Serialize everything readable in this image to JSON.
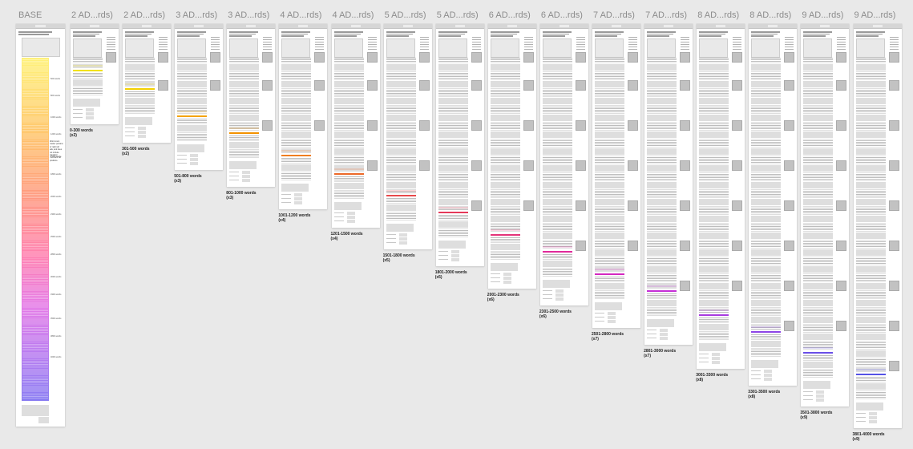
{
  "colors": {
    "background": "#e9e9e9",
    "artboard": "#ffffff",
    "side_ad": "#c2c2c2",
    "base_gradient": [
      "#fff27a",
      "#ffc56a",
      "#ff9a7e",
      "#ff7fb0",
      "#e57ae6",
      "#b87af0",
      "#8a7df2"
    ]
  },
  "base": {
    "title": "BASE",
    "note": "Word count marker pertains to 'right rail' ads, and does not include standard 'incontent' ad positions.",
    "markers": [
      "500 words",
      "800 words",
      "1000 words",
      "1200 words",
      "1500 words",
      "1800 words",
      "2000 words",
      "2300 words",
      "2500 words",
      "2800 words",
      "3000 words",
      "3300 words",
      "3500 words",
      "3800 words",
      "4000 words"
    ]
  },
  "columns": [
    {
      "title": "2 AD...rds)",
      "range": "0-300 words",
      "ads": "(x2)",
      "ad_color": "#f2e200"
    },
    {
      "title": "2 AD...rds)",
      "range": "301-500 words",
      "ads": "(x2)",
      "ad_color": "#f3d000"
    },
    {
      "title": "3 AD...rds)",
      "range": "501-800 words",
      "ads": "(x3)",
      "ad_color": "#f5a300"
    },
    {
      "title": "3 AD...rds)",
      "range": "801-1000 words",
      "ads": "(x3)",
      "ad_color": "#f39200"
    },
    {
      "title": "4 AD...rds)",
      "range": "1001-1200 words",
      "ads": "(x4)",
      "ad_color": "#f07d1f"
    },
    {
      "title": "4 AD...rds)",
      "range": "1201-1500 words",
      "ads": "(x4)",
      "ad_color": "#ec6a2a"
    },
    {
      "title": "5 AD...rds)",
      "range": "1501-1800 words",
      "ads": "(x5)",
      "ad_color": "#e8484a"
    },
    {
      "title": "5 AD...rds)",
      "range": "1801-2000 words",
      "ads": "(x5)",
      "ad_color": "#e53a5a"
    },
    {
      "title": "6 AD...rds)",
      "range": "2001-2300 words",
      "ads": "(x6)",
      "ad_color": "#e5337a"
    },
    {
      "title": "6 AD...rds)",
      "range": "2301-2500 words",
      "ads": "(x6)",
      "ad_color": "#e02a9a"
    },
    {
      "title": "7 AD...rds)",
      "range": "2501-2800 words",
      "ads": "(x7)",
      "ad_color": "#d428c0"
    },
    {
      "title": "7 AD...rds)",
      "range": "2801-3000 words",
      "ads": "(x7)",
      "ad_color": "#c530d6"
    },
    {
      "title": "8 AD...rds)",
      "range": "3001-3300 words",
      "ads": "(x8)",
      "ad_color": "#a83be0"
    },
    {
      "title": "8 AD...rds)",
      "range": "3301-3500 words",
      "ads": "(x8)",
      "ad_color": "#8d45e6"
    },
    {
      "title": "9 AD...rds)",
      "range": "3501-3800 words",
      "ads": "(x9)",
      "ad_color": "#6a4fe8"
    },
    {
      "title": "9 AD...rds)",
      "range": "3801-4000 words",
      "ads": "(x9)",
      "ad_color": "#5552e6"
    }
  ]
}
